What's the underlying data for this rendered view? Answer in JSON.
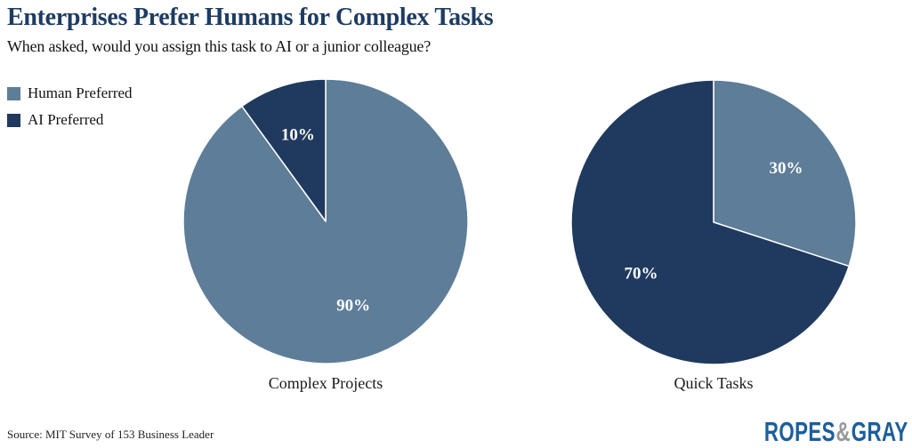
{
  "header": {
    "title": "Enterprises Prefer Humans for Complex Tasks",
    "subtitle": "When asked, would you assign this task to AI or a junior colleague?"
  },
  "colors": {
    "human_preferred": "#5d7d98",
    "ai_preferred": "#1f3a5e",
    "title_navy": "#1e3c62",
    "slice_label": "#ffffff",
    "logo_blue": "#1b5e9e",
    "logo_gray": "#97999c"
  },
  "legend": {
    "items": [
      {
        "label": "Human Preferred",
        "color": "#5d7d98"
      },
      {
        "label": "AI Preferred",
        "color": "#1f3a5e"
      }
    ]
  },
  "chart_data": [
    {
      "type": "pie",
      "title": "Complex Projects",
      "start_angle_deg": 0,
      "direction": "clockwise",
      "slices": [
        {
          "label": "Human Preferred",
          "value": 90,
          "display": "90%",
          "color": "#5d7d98"
        },
        {
          "label": "AI Preferred",
          "value": 10,
          "display": "10%",
          "color": "#1f3a5e"
        }
      ]
    },
    {
      "type": "pie",
      "title": "Quick Tasks",
      "start_angle_deg": 0,
      "direction": "clockwise",
      "slices": [
        {
          "label": "Human Preferred",
          "value": 30,
          "display": "30%",
          "color": "#5d7d98"
        },
        {
          "label": "AI Preferred",
          "value": 70,
          "display": "70%",
          "color": "#1f3a5e"
        }
      ]
    }
  ],
  "footer": {
    "source": "Source: MIT Survey of 153 Business Leader",
    "logo": {
      "word1": "ROPES",
      "amp": "&",
      "word2": "GRAY"
    }
  }
}
